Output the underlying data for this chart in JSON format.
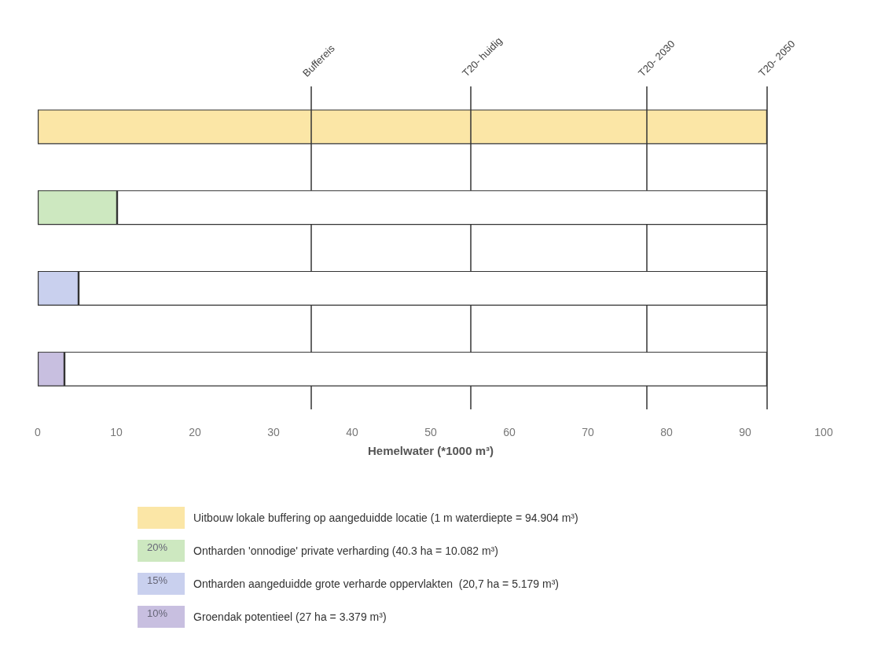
{
  "chart_data": {
    "type": "bar",
    "orientation": "horizontal",
    "categories": [
      null,
      null,
      null,
      null
    ],
    "xlabel": "Hemelwater (*1000 m³)",
    "xlim": [
      0,
      100
    ],
    "xticks": [
      0,
      10,
      20,
      30,
      40,
      50,
      60,
      70,
      80,
      90,
      100
    ],
    "grid": false,
    "legend": "bottom",
    "stacked": true,
    "tick_labels": "x",
    "series": [
      {
        "name": "Uitbouw lokale buffering op aangeduidde locatie (1 m waterdiepte = 94.904 m³)",
        "color": "#fbe6a6",
        "values": [
          92.8,
          null,
          null,
          null
        ]
      },
      {
        "name": "Ontharden 'onnodige' private verharding (40.3 ha = 10.082 m³)",
        "color": "#cde8c0",
        "values": [
          null,
          10.1,
          null,
          null
        ]
      },
      {
        "name": "Ontharden aangeduidde grote verharde oppervlakten  (20,7 ha = 5.179 m³)",
        "color": "#c9d0ee",
        "values": [
          null,
          null,
          5.2,
          null
        ]
      },
      {
        "name": "Groendak potentieel (27 ha = 3.379 m³)",
        "color": "#c8bfe0",
        "values": [
          null,
          null,
          null,
          3.4
        ]
      },
      {
        "color": "#ffffff",
        "values": [
          null,
          82.7,
          87.6,
          89.4
        ]
      }
    ],
    "ref_lines": [
      {
        "axis": "x",
        "value": 34.8,
        "label": "Buffereis"
      },
      {
        "axis": "x",
        "value": 55.1,
        "label": "T20- huidig"
      },
      {
        "axis": "x",
        "value": 77.5,
        "label": "T20- 2030"
      },
      {
        "axis": "x",
        "value": 92.8,
        "label": "T20- 2050"
      }
    ],
    "annotations": [
      "20%",
      "15%",
      "10%"
    ]
  }
}
